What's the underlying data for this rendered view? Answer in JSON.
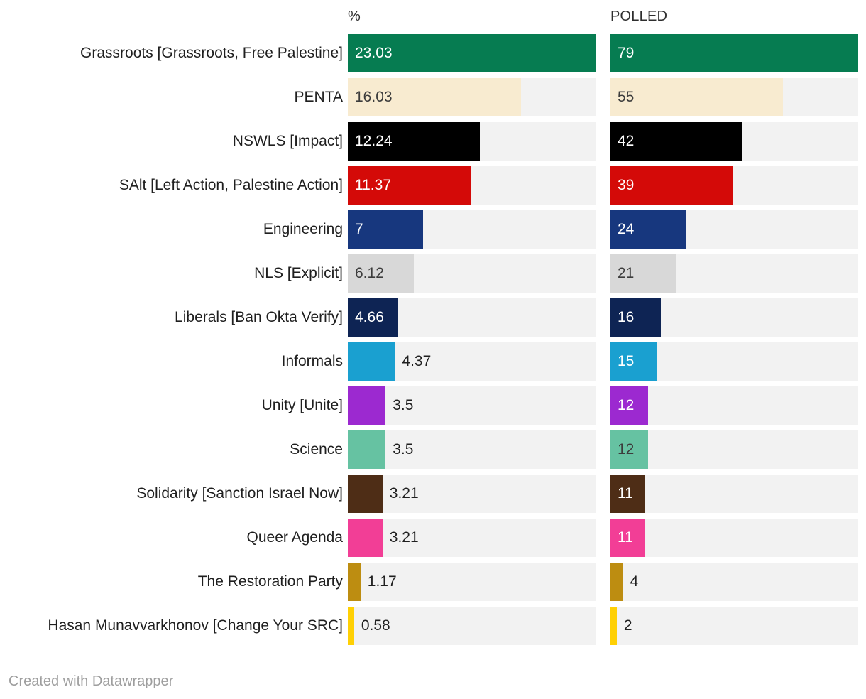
{
  "header": {
    "pct": "%",
    "polled": "POLLED"
  },
  "footer": {
    "credit": "Created with Datawrapper"
  },
  "colors": {
    "track": "#f2f2f2",
    "label_text": "#1f1f1f",
    "inside_light_text": "#ffffff",
    "inside_dark_text": "#3c3c3c",
    "footer_text": "#9e9e9e"
  },
  "chart_data": {
    "type": "bar",
    "orientation": "horizontal",
    "grid": false,
    "legend": "none",
    "columns": [
      {
        "key": "pct",
        "header": "%",
        "max": 23.03
      },
      {
        "key": "polled",
        "header": "POLLED",
        "max": 79
      }
    ],
    "rows": [
      {
        "label": "Grassroots [Grassroots, Free Palestine]",
        "color": "#067c51",
        "pct": {
          "value": 23.03,
          "display": "23.03",
          "placement": "inside",
          "text": "light"
        },
        "polled": {
          "value": 79,
          "display": "79",
          "placement": "inside",
          "text": "light"
        }
      },
      {
        "label": "PENTA",
        "color": "#f8ebd0",
        "pct": {
          "value": 16.03,
          "display": "16.03",
          "placement": "inside",
          "text": "dark"
        },
        "polled": {
          "value": 55,
          "display": "55",
          "placement": "inside",
          "text": "dark"
        }
      },
      {
        "label": "NSWLS [Impact]",
        "color": "#000000",
        "pct": {
          "value": 12.24,
          "display": "12.24",
          "placement": "inside",
          "text": "light"
        },
        "polled": {
          "value": 42,
          "display": "42",
          "placement": "inside",
          "text": "light"
        }
      },
      {
        "label": "SAlt [Left Action, Palestine Action]",
        "color": "#d40a08",
        "pct": {
          "value": 11.37,
          "display": "11.37",
          "placement": "inside",
          "text": "light"
        },
        "polled": {
          "value": 39,
          "display": "39",
          "placement": "inside",
          "text": "light"
        }
      },
      {
        "label": "Engineering",
        "color": "#17377e",
        "pct": {
          "value": 7,
          "display": "7",
          "placement": "inside",
          "text": "light"
        },
        "polled": {
          "value": 24,
          "display": "24",
          "placement": "inside",
          "text": "light"
        }
      },
      {
        "label": "NLS [Explicit]",
        "color": "#d8d8d8",
        "pct": {
          "value": 6.12,
          "display": "6.12",
          "placement": "inside",
          "text": "dark"
        },
        "polled": {
          "value": 21,
          "display": "21",
          "placement": "inside",
          "text": "dark"
        }
      },
      {
        "label": "Liberals [Ban Okta Verify]",
        "color": "#0e2454",
        "pct": {
          "value": 4.66,
          "display": "4.66",
          "placement": "inside",
          "text": "light"
        },
        "polled": {
          "value": 16,
          "display": "16",
          "placement": "inside",
          "text": "light"
        }
      },
      {
        "label": "Informals",
        "color": "#1aa0d0",
        "pct": {
          "value": 4.37,
          "display": "4.37",
          "placement": "outside",
          "text": "dark"
        },
        "polled": {
          "value": 15,
          "display": "15",
          "placement": "inside",
          "text": "light"
        }
      },
      {
        "label": "Unity [Unite]",
        "color": "#9c29d0",
        "pct": {
          "value": 3.5,
          "display": "3.5",
          "placement": "outside",
          "text": "dark"
        },
        "polled": {
          "value": 12,
          "display": "12",
          "placement": "inside",
          "text": "light"
        }
      },
      {
        "label": "Science",
        "color": "#66c2a2",
        "pct": {
          "value": 3.5,
          "display": "3.5",
          "placement": "outside",
          "text": "dark"
        },
        "polled": {
          "value": 12,
          "display": "12",
          "placement": "inside",
          "text": "dark"
        }
      },
      {
        "label": "Solidarity [Sanction Israel Now]",
        "color": "#4e2d16",
        "pct": {
          "value": 3.21,
          "display": "3.21",
          "placement": "outside",
          "text": "dark"
        },
        "polled": {
          "value": 11,
          "display": "11",
          "placement": "inside",
          "text": "light"
        }
      },
      {
        "label": "Queer Agenda",
        "color": "#f23e96",
        "pct": {
          "value": 3.21,
          "display": "3.21",
          "placement": "outside",
          "text": "dark"
        },
        "polled": {
          "value": 11,
          "display": "11",
          "placement": "inside",
          "text": "light"
        }
      },
      {
        "label": "The Restoration Party",
        "color": "#bd8d11",
        "pct": {
          "value": 1.17,
          "display": "1.17",
          "placement": "outside",
          "text": "dark"
        },
        "polled": {
          "value": 4,
          "display": "4",
          "placement": "outside",
          "text": "dark"
        }
      },
      {
        "label": "Hasan Munavvarkhonov [Change Your SRC]",
        "color": "#ffd004",
        "pct": {
          "value": 0.58,
          "display": "0.58",
          "placement": "outside",
          "text": "dark"
        },
        "polled": {
          "value": 2,
          "display": "2",
          "placement": "outside",
          "text": "dark"
        }
      }
    ]
  }
}
